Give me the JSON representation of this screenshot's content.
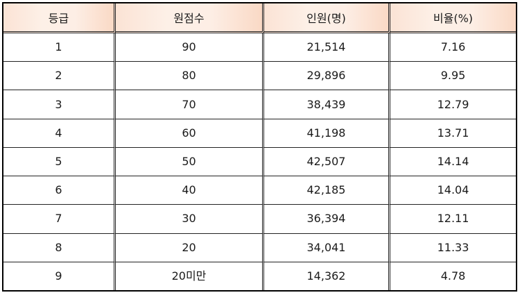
{
  "table": {
    "headers": [
      "등급",
      "원점수",
      "인원(명)",
      "비율(%)"
    ],
    "rows": [
      [
        "1",
        "90",
        "21,514",
        "7.16"
      ],
      [
        "2",
        "80",
        "29,896",
        "9.95"
      ],
      [
        "3",
        "70",
        "38,439",
        "12.79"
      ],
      [
        "4",
        "60",
        "41,198",
        "13.71"
      ],
      [
        "5",
        "50",
        "42,507",
        "14.14"
      ],
      [
        "6",
        "40",
        "42,185",
        "14.04"
      ],
      [
        "7",
        "30",
        "36,394",
        "12.11"
      ],
      [
        "8",
        "20",
        "34,041",
        "11.33"
      ],
      [
        "9",
        "20미만",
        "14,362",
        "4.78"
      ]
    ]
  },
  "colors": {
    "header_bg": "#fbe3d5",
    "border": "#222222"
  }
}
